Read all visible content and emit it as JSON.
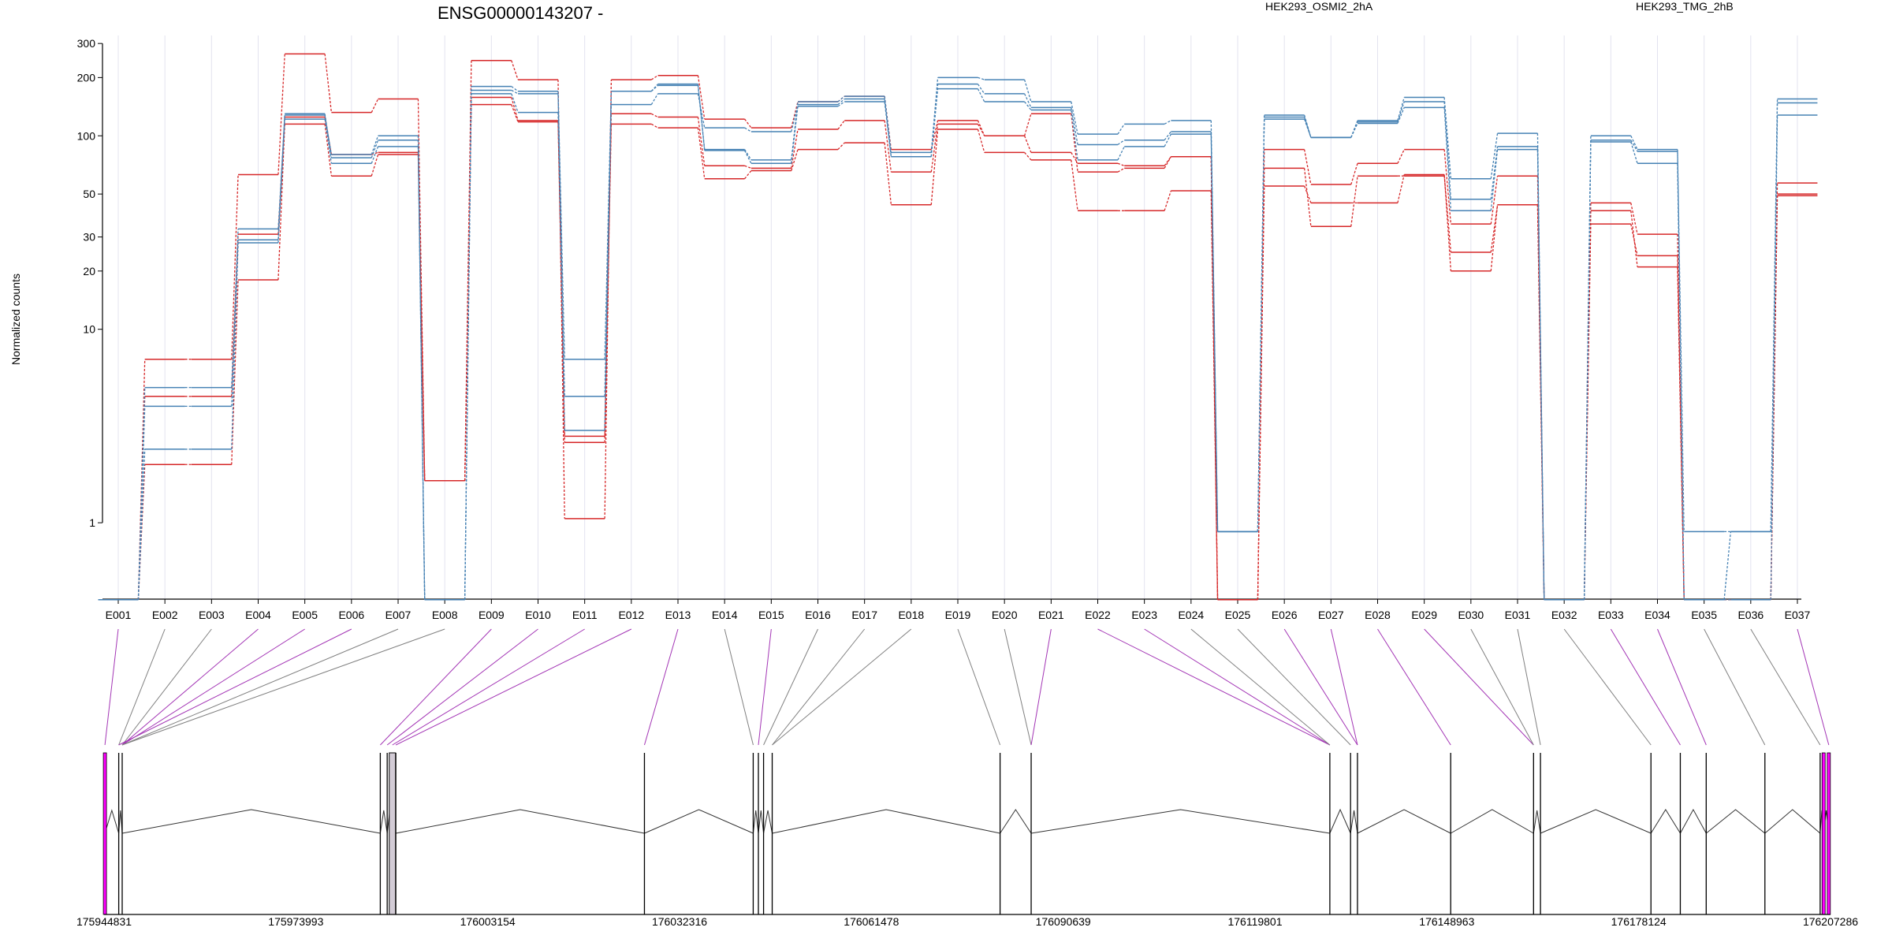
{
  "chart_data": {
    "type": "line",
    "title": "ENSG00000143207 -",
    "ylabel": "Normalized counts",
    "xlabel": "",
    "y_scale": "log",
    "ylim": [
      0.5,
      330
    ],
    "yticks": [
      1,
      10,
      20,
      30,
      50,
      100,
      200,
      300
    ],
    "categories": [
      "E001",
      "E002",
      "E003",
      "E004",
      "E005",
      "E006",
      "E007",
      "E008",
      "E009",
      "E010",
      "E011",
      "E012",
      "E013",
      "E014",
      "E015",
      "E016",
      "E017",
      "E018",
      "E019",
      "E020",
      "E021",
      "E022",
      "E023",
      "E024",
      "E025",
      "E026",
      "E027",
      "E028",
      "E029",
      "E030",
      "E031",
      "E032",
      "E033",
      "E034",
      "E035",
      "E036",
      "E037"
    ],
    "legend": [
      {
        "label": "HEK293_OSMI2_2hA",
        "color": "#d62728"
      },
      {
        "label": "HEK293_TMG_2hB",
        "color": "#4682b4"
      }
    ],
    "series": [
      {
        "group": "HEK293_OSMI2_2hA",
        "color": "#d62728",
        "values": [
          0.4,
          7,
          7,
          63,
          265,
          132,
          155,
          1.65,
          245,
          195,
          1.05,
          195,
          205,
          122,
          110,
          150,
          160,
          85,
          120,
          100,
          82,
          72,
          70,
          78,
          0.4,
          85,
          56,
          72,
          85,
          35,
          62,
          0.4,
          45,
          31,
          0.4,
          0.4,
          57
        ]
      },
      {
        "group": "HEK293_OSMI2_2hA",
        "color": "#d62728",
        "values": [
          0.4,
          2,
          2,
          18,
          115,
          62,
          80,
          1.65,
          145,
          118,
          2.6,
          115,
          110,
          60,
          66,
          85,
          92,
          44,
          108,
          82,
          75,
          41,
          41,
          52,
          0.4,
          55,
          45,
          45,
          63,
          20,
          44,
          0.4,
          41,
          21,
          0.4,
          0.4,
          50
        ]
      },
      {
        "group": "HEK293_OSMI2_2hA",
        "color": "#d62728",
        "values": [
          0.4,
          4.5,
          4.5,
          31,
          125,
          80,
          82,
          1.65,
          158,
          120,
          2.8,
          130,
          125,
          70,
          68,
          108,
          120,
          65,
          115,
          100,
          130,
          65,
          68,
          78,
          0.4,
          68,
          34,
          62,
          62,
          25,
          44,
          0.4,
          35,
          24,
          0.4,
          0.4,
          49
        ]
      },
      {
        "group": "HEK293_TMG_2hB",
        "color": "#4682b4",
        "values": [
          0.4,
          5,
          5,
          33,
          128,
          80,
          100,
          0.4,
          180,
          170,
          7,
          170,
          185,
          85,
          75,
          150,
          160,
          82,
          200,
          195,
          150,
          102,
          115,
          120,
          0.9,
          128,
          98,
          120,
          158,
          60,
          103,
          0.4,
          100,
          85,
          0.9,
          0.9,
          155
        ]
      },
      {
        "group": "HEK293_TMG_2hB",
        "color": "#4682b4",
        "values": [
          0.4,
          4,
          4,
          29,
          130,
          77,
          95,
          0.4,
          172,
          165,
          4.5,
          145,
          165,
          110,
          105,
          145,
          155,
          78,
          185,
          165,
          140,
          90,
          95,
          105,
          0.9,
          125,
          98,
          118,
          150,
          47,
          88,
          0.4,
          95,
          83,
          0.4,
          0.9,
          148
        ]
      },
      {
        "group": "HEK293_TMG_2hB",
        "color": "#4682b4",
        "values": [
          0.4,
          2.4,
          2.4,
          28,
          122,
          72,
          88,
          0.4,
          165,
          132,
          3,
          170,
          182,
          84,
          72,
          142,
          150,
          78,
          175,
          150,
          136,
          75,
          88,
          102,
          0.9,
          122,
          98,
          116,
          140,
          41,
          85,
          0.4,
          93,
          72,
          0.4,
          0.4,
          128
        ]
      }
    ],
    "gene_model": {
      "coordinate_labels": [
        "175944831",
        "175973993",
        "176003154",
        "176032316",
        "176061478",
        "176090639",
        "176119801",
        "176148963",
        "176178124",
        "176207286"
      ],
      "exon_x_fraction": [
        0.0005,
        0.0085,
        0.0105,
        0.16,
        0.164,
        0.167,
        0.169,
        0.313,
        0.376,
        0.379,
        0.382,
        0.387,
        0.519,
        0.537,
        0.71,
        0.722,
        0.726,
        0.78,
        0.828,
        0.832,
        0.896,
        0.913,
        0.928,
        0.962,
        0.994,
        0.996,
        0.999
      ],
      "highlighted_exons": [
        0,
        25,
        26
      ],
      "highlight_color": "#ff00ff",
      "grey_exons": [
        5
      ],
      "grey_color": "#d3ccd6"
    },
    "connector_colors": [
      "#808080",
      "#a335b5"
    ],
    "exon_connector_targets": [
      0.0005,
      0.0085,
      0.0105,
      0.0105,
      0.0105,
      0.0085,
      0.0105,
      0.0105,
      0.16,
      0.164,
      0.167,
      0.169,
      0.313,
      0.376,
      0.379,
      0.382,
      0.387,
      0.387,
      0.519,
      0.537,
      0.537,
      0.71,
      0.71,
      0.71,
      0.722,
      0.726,
      0.726,
      0.78,
      0.828,
      0.828,
      0.832,
      0.896,
      0.913,
      0.928,
      0.962,
      0.994,
      0.999
    ],
    "connector_magenta_mask": [
      1,
      0,
      0,
      1,
      1,
      1,
      0,
      0,
      1,
      1,
      1,
      1,
      1,
      0,
      1,
      0,
      0,
      0,
      0,
      0,
      1,
      1,
      1,
      0,
      0,
      1,
      1,
      1,
      1,
      0,
      0,
      0,
      1,
      1,
      0,
      0,
      1
    ]
  }
}
